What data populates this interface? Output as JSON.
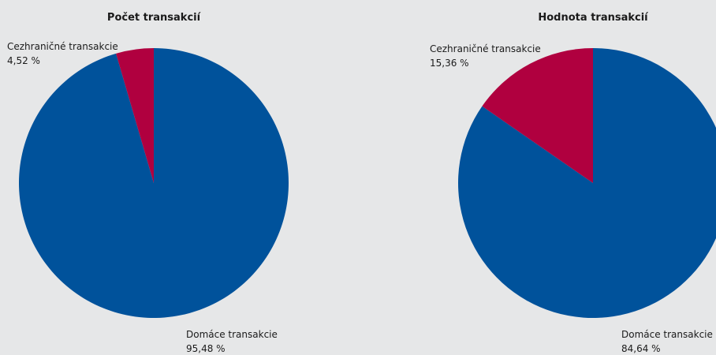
{
  "chart_data": [
    {
      "type": "pie",
      "title": "Počet transakcií",
      "categories": [
        "Domáce transakcie",
        "Cezhraničné transakcie"
      ],
      "values": [
        95.48,
        4.52
      ],
      "value_labels": [
        "95,48 %",
        "4,52 %"
      ],
      "colors": [
        "#00529b",
        "#b0003f"
      ]
    },
    {
      "type": "pie",
      "title": "Hodnota transakcií",
      "categories": [
        "Domáce transakcie",
        "Cezhraničné transakcie"
      ],
      "values": [
        84.64,
        15.36
      ],
      "value_labels": [
        "84,64  %",
        "15,36 %"
      ],
      "colors": [
        "#00529b",
        "#b0003f"
      ]
    }
  ]
}
